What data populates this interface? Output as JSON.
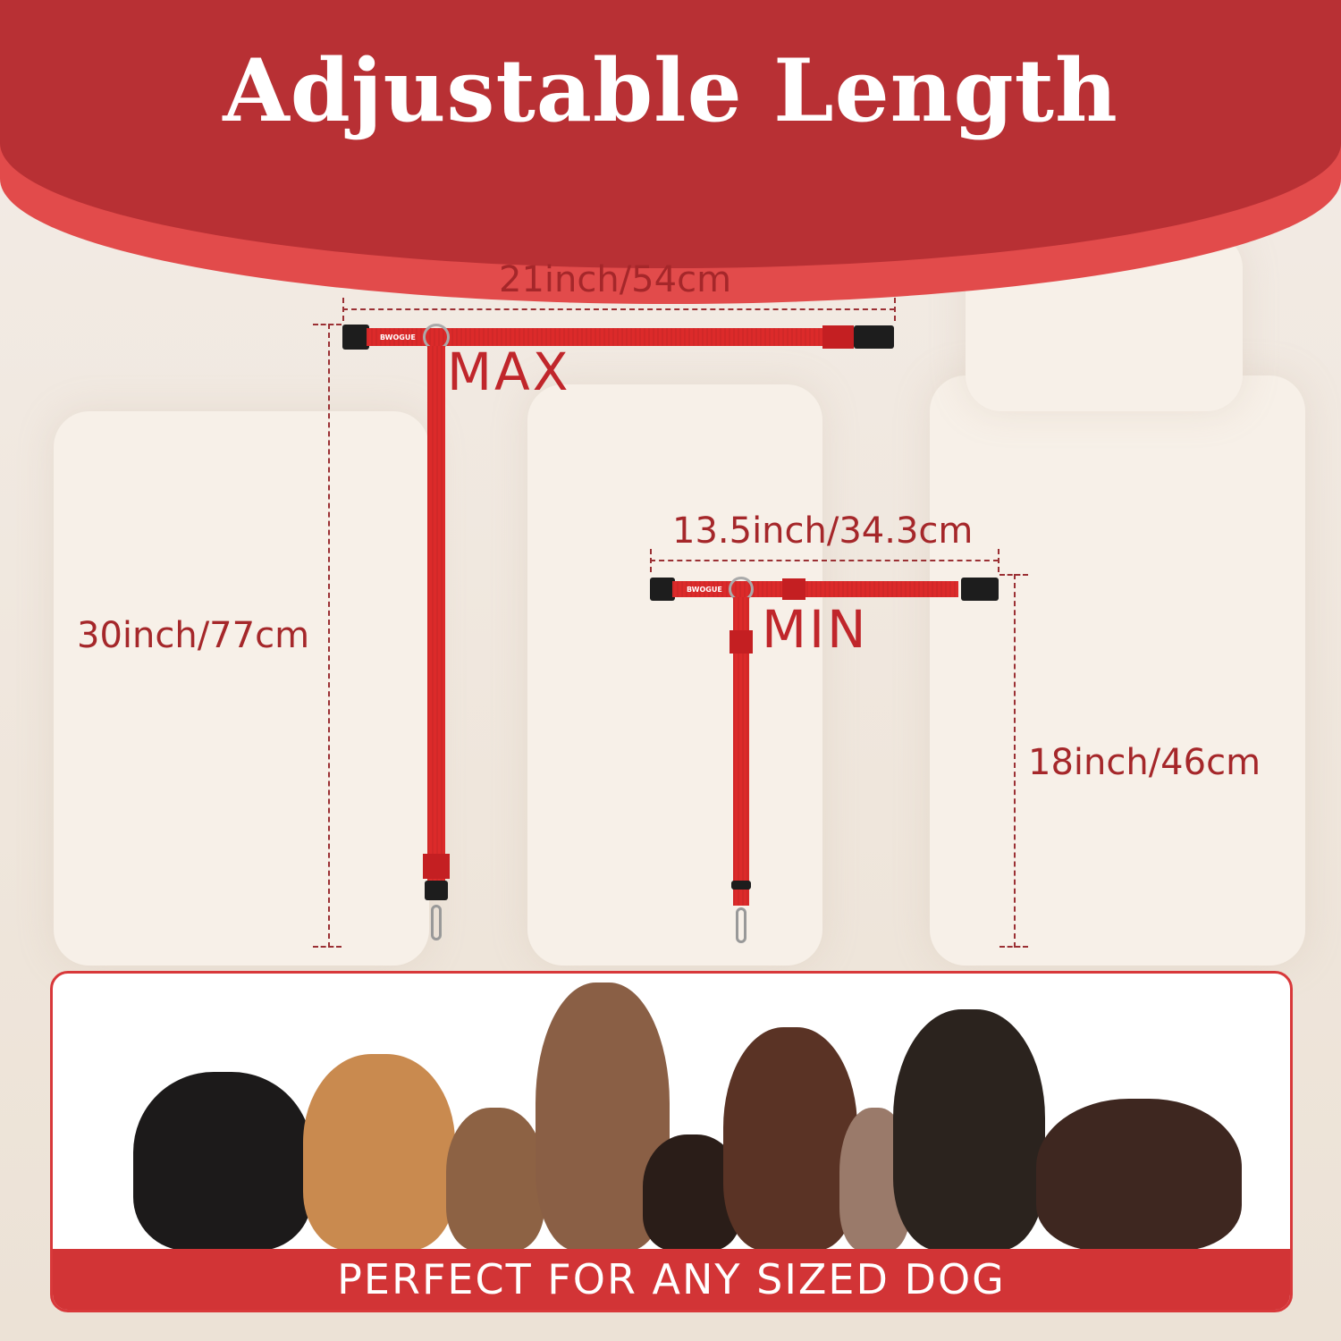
{
  "title": "Adjustable Length",
  "max": {
    "label": "MAX",
    "width": "21inch/54cm",
    "height": "30inch/77cm",
    "brand": "BWOGUE"
  },
  "min": {
    "label": "MIN",
    "width": "13.5inch/34.3cm",
    "height": "18inch/46cm",
    "brand": "BWOGUE"
  },
  "footer": "PERFECT FOR ANY SIZED DOG",
  "colors": {
    "header": "#b83034",
    "accent": "#e24b4b",
    "strap": "#dc2a2a",
    "text": "#a5272a"
  }
}
